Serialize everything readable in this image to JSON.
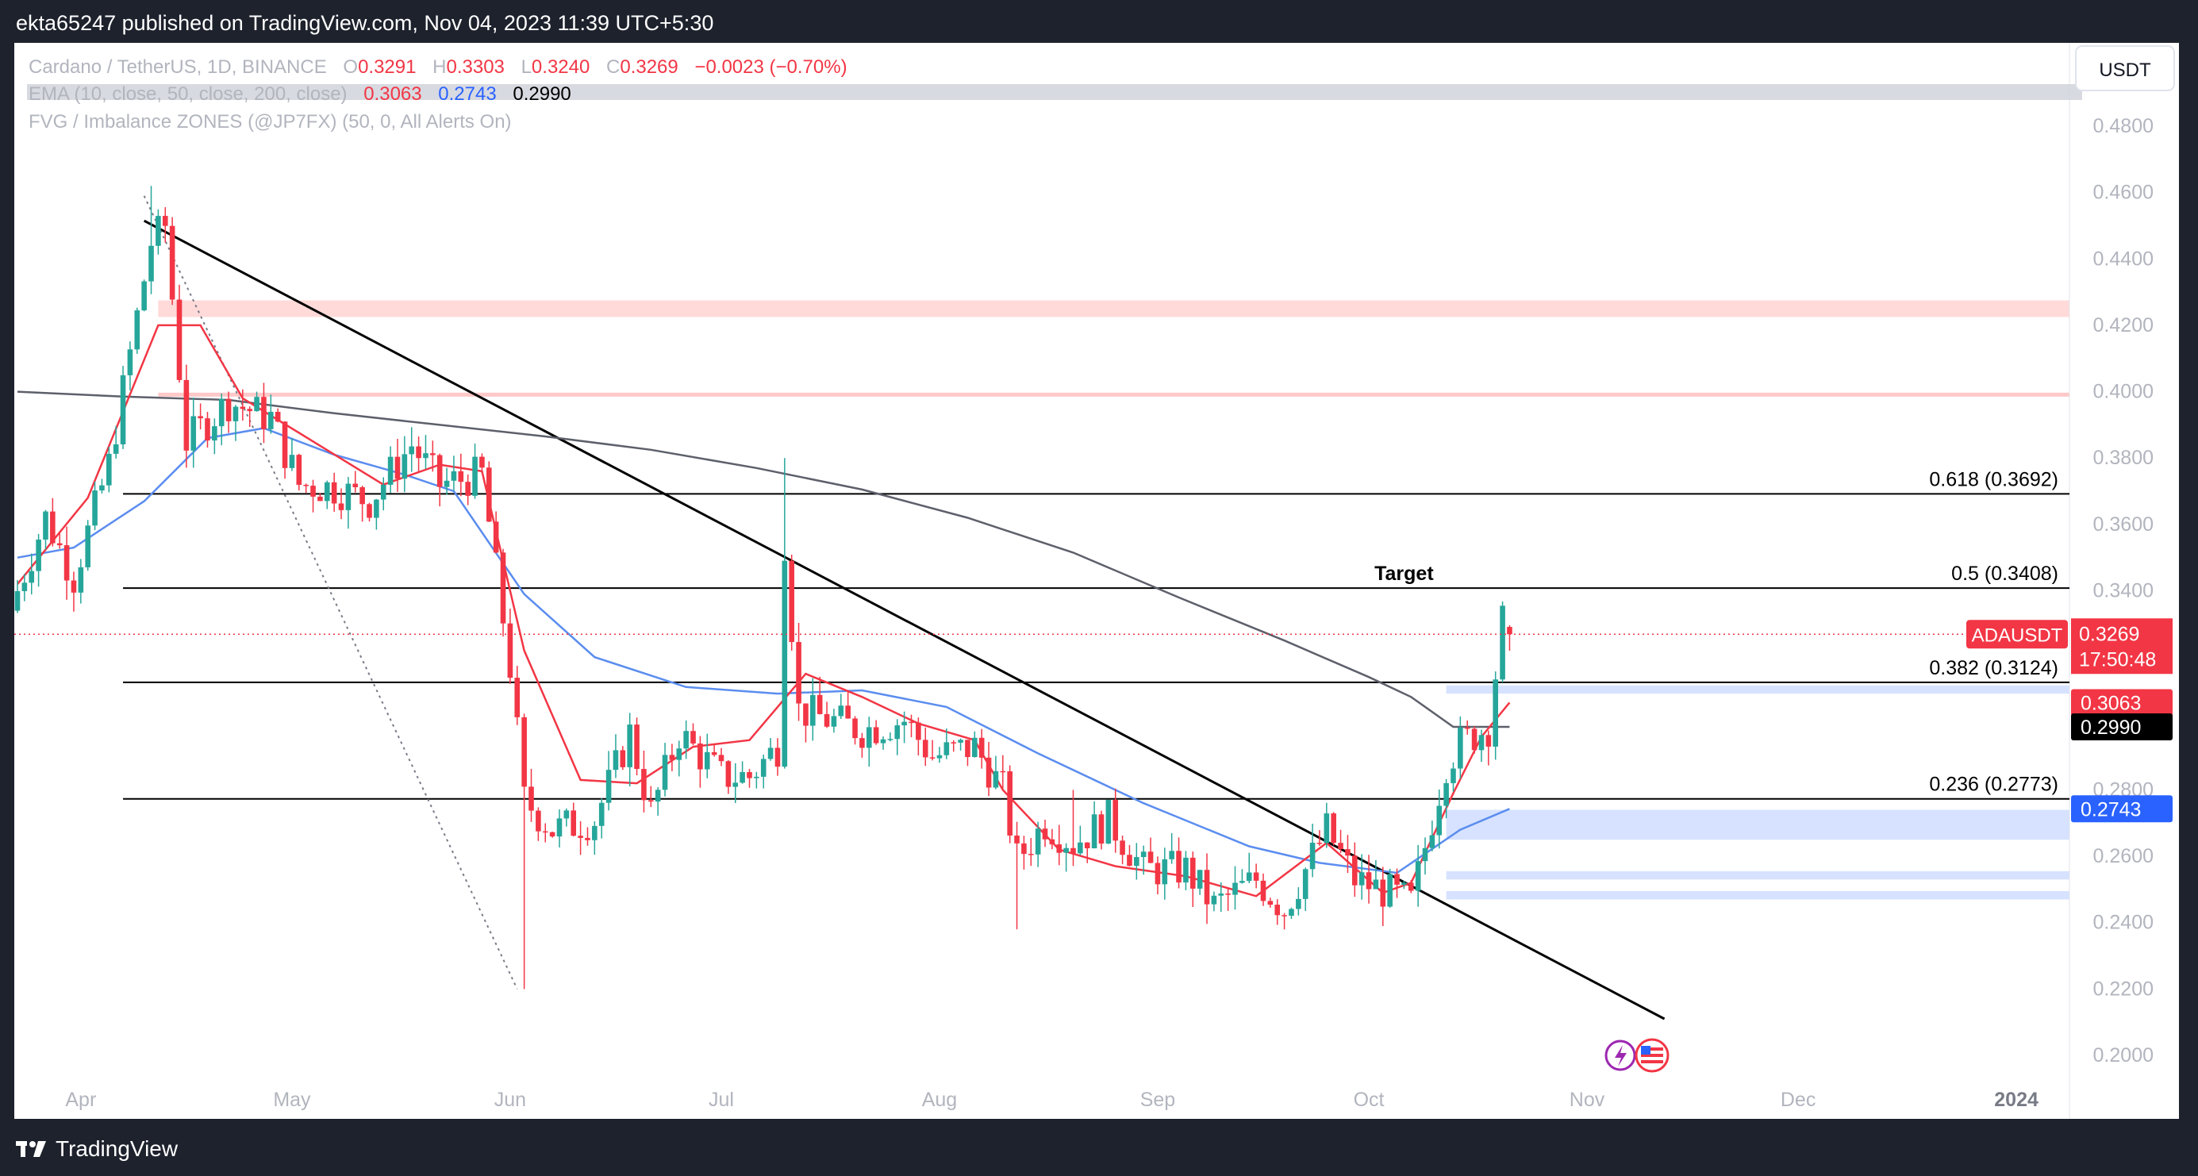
{
  "header": {
    "published_text": "ekta65247 published on TradingView.com, Nov 04, 2023 11:39 UTC+5:30"
  },
  "footer": {
    "brand": "TradingView"
  },
  "legend": {
    "symbol": "Cardano / TetherUS, 1D, BINANCE",
    "o_label": "O",
    "o_value": "0.3291",
    "h_label": "H",
    "h_value": "0.3303",
    "l_label": "L",
    "l_value": "0.3240",
    "c_label": "C",
    "c_value": "0.3269",
    "change": "−0.0023 (−0.70%)",
    "ema_label": "EMA (10, close, 50, close, 200, close)",
    "ema10": "0.3063",
    "ema50": "0.2743",
    "ema200": "0.2990",
    "fvg_label": "FVG / Imbalance ZONES (@JP7FX) (50, 0, All Alerts On)"
  },
  "currency_button": "USDT",
  "colors": {
    "up": "#26a69a",
    "down": "#f23645",
    "ema10": "#f23645",
    "ema50": "#2962ff",
    "ema200": "#5d606b"
  },
  "chart_data": {
    "type": "candlestick",
    "symbol": "ADAUSDT",
    "ylim": [
      0.2,
      0.49
    ],
    "x_ticks": [
      "Apr",
      "May",
      "Jun",
      "Jul",
      "Aug",
      "Sep",
      "Oct",
      "Nov",
      "Dec",
      "2024"
    ],
    "y_ticks": [
      "0.4800",
      "0.4600",
      "0.4400",
      "0.4200",
      "0.4000",
      "0.3800",
      "0.3600",
      "0.3400",
      "0.3200",
      "0.3000",
      "0.2800",
      "0.2600",
      "0.2400",
      "0.2200",
      "0.2000"
    ],
    "price_line": {
      "label": "ADAUSDT",
      "value": "0.3269",
      "countdown": "17:50:48"
    },
    "ema_tags": [
      {
        "value": "0.3063",
        "color": "#f23645"
      },
      {
        "value": "0.2990",
        "color": "#000000"
      },
      {
        "value": "0.2743",
        "color": "#2962ff"
      }
    ],
    "fib_levels": [
      {
        "label": "0.618 (0.3692)",
        "value": 0.3692
      },
      {
        "label": "0.5 (0.3408)",
        "value": 0.3408
      },
      {
        "label": "0.382 (0.3124)",
        "value": 0.3124
      },
      {
        "label": "0.236 (0.2773)",
        "value": 0.2773
      }
    ],
    "target_label": "Target",
    "zones": [
      {
        "top": 0.4275,
        "bottom": 0.4225,
        "color": "#ffdad9"
      },
      {
        "top": 0.3997,
        "bottom": 0.3985,
        "color": "#ffc9c9"
      },
      {
        "top": 0.3115,
        "bottom": 0.309,
        "color": "#d6e2ff"
      },
      {
        "top": 0.274,
        "bottom": 0.265,
        "color": "#d6e2ff"
      },
      {
        "top": 0.2555,
        "bottom": 0.253,
        "color": "#d6e2ff"
      },
      {
        "top": 0.2495,
        "bottom": 0.247,
        "color": "#d6e2ff"
      }
    ],
    "trendline": {
      "start": {
        "day": 18,
        "value": 0.4515
      },
      "end": {
        "day": 234,
        "value": 0.211
      }
    },
    "dotted_line": {
      "start": {
        "day": 18,
        "value": 0.459
      },
      "end": {
        "day": 71,
        "value": 0.22
      }
    },
    "ema200_path": [
      [
        0,
        0.4
      ],
      [
        15,
        0.3985
      ],
      [
        30,
        0.3975
      ],
      [
        45,
        0.3935
      ],
      [
        60,
        0.39
      ],
      [
        75,
        0.3865
      ],
      [
        90,
        0.3825
      ],
      [
        105,
        0.377
      ],
      [
        120,
        0.3705
      ],
      [
        135,
        0.362
      ],
      [
        150,
        0.3515
      ],
      [
        165,
        0.338
      ],
      [
        180,
        0.325
      ],
      [
        192,
        0.314
      ],
      [
        198,
        0.308
      ],
      [
        204,
        0.299
      ],
      [
        212,
        0.299
      ]
    ],
    "ema50_path": [
      [
        0,
        0.35
      ],
      [
        8,
        0.353
      ],
      [
        18,
        0.367
      ],
      [
        27,
        0.386
      ],
      [
        35,
        0.389
      ],
      [
        45,
        0.381
      ],
      [
        55,
        0.375
      ],
      [
        62,
        0.37
      ],
      [
        72,
        0.339
      ],
      [
        82,
        0.32
      ],
      [
        95,
        0.311
      ],
      [
        108,
        0.309
      ],
      [
        120,
        0.31
      ],
      [
        132,
        0.305
      ],
      [
        145,
        0.291
      ],
      [
        160,
        0.276
      ],
      [
        175,
        0.263
      ],
      [
        185,
        0.258
      ],
      [
        196,
        0.255
      ],
      [
        205,
        0.268
      ],
      [
        212,
        0.2743
      ]
    ],
    "ema10_path": [
      [
        0,
        0.342
      ],
      [
        10,
        0.368
      ],
      [
        20,
        0.42
      ],
      [
        26,
        0.42
      ],
      [
        32,
        0.398
      ],
      [
        42,
        0.385
      ],
      [
        52,
        0.372
      ],
      [
        60,
        0.378
      ],
      [
        66,
        0.376
      ],
      [
        72,
        0.322
      ],
      [
        80,
        0.283
      ],
      [
        88,
        0.282
      ],
      [
        96,
        0.293
      ],
      [
        104,
        0.295
      ],
      [
        108,
        0.305
      ],
      [
        112,
        0.315
      ],
      [
        120,
        0.308
      ],
      [
        128,
        0.3
      ],
      [
        136,
        0.295
      ],
      [
        140,
        0.28
      ],
      [
        148,
        0.262
      ],
      [
        156,
        0.257
      ],
      [
        166,
        0.254
      ],
      [
        176,
        0.248
      ],
      [
        186,
        0.264
      ],
      [
        194,
        0.249
      ],
      [
        198,
        0.252
      ],
      [
        204,
        0.279
      ],
      [
        208,
        0.296
      ],
      [
        212,
        0.3063
      ]
    ],
    "candles": {
      "days": 212,
      "open": 0.334,
      "anchors": [
        [
          0,
          0.34
        ],
        [
          4,
          0.362
        ],
        [
          8,
          0.344
        ],
        [
          13,
          0.378
        ],
        [
          19,
          0.445
        ],
        [
          21,
          0.45
        ],
        [
          24,
          0.385
        ],
        [
          30,
          0.397
        ],
        [
          36,
          0.392
        ],
        [
          40,
          0.372
        ],
        [
          45,
          0.371
        ],
        [
          50,
          0.367
        ],
        [
          56,
          0.384
        ],
        [
          60,
          0.372
        ],
        [
          66,
          0.375
        ],
        [
          70,
          0.317
        ],
        [
          72,
          0.277
        ],
        [
          76,
          0.268
        ],
        [
          82,
          0.271
        ],
        [
          87,
          0.297
        ],
        [
          90,
          0.273
        ],
        [
          94,
          0.297
        ],
        [
          100,
          0.284
        ],
        [
          104,
          0.284
        ],
        [
          108,
          0.293
        ],
        [
          109,
          0.355
        ],
        [
          111,
          0.304
        ],
        [
          114,
          0.302
        ],
        [
          120,
          0.298
        ],
        [
          126,
          0.301
        ],
        [
          130,
          0.29
        ],
        [
          136,
          0.293
        ],
        [
          140,
          0.28
        ],
        [
          142,
          0.259
        ],
        [
          146,
          0.27
        ],
        [
          150,
          0.264
        ],
        [
          155,
          0.271
        ],
        [
          160,
          0.256
        ],
        [
          166,
          0.256
        ],
        [
          170,
          0.245
        ],
        [
          176,
          0.253
        ],
        [
          180,
          0.244
        ],
        [
          186,
          0.268
        ],
        [
          190,
          0.253
        ],
        [
          196,
          0.248
        ],
        [
          198,
          0.246
        ],
        [
          203,
          0.288
        ],
        [
          205,
          0.294
        ],
        [
          209,
          0.299
        ],
        [
          211,
          0.331
        ],
        [
          212,
          0.3269
        ]
      ]
    }
  }
}
